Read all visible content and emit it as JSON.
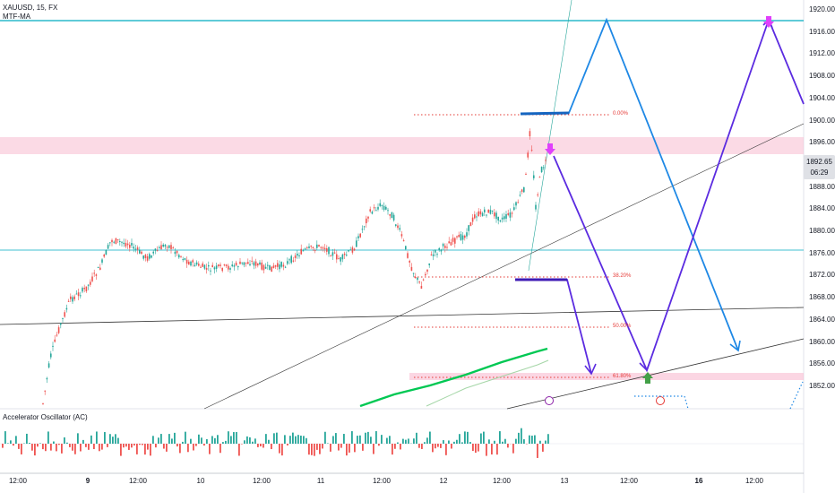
{
  "colors": {
    "background": "#ffffff",
    "up_candle": "#26a69a",
    "down_candle": "#ef5350",
    "fib_dotted": "#e53935",
    "resistance_line": "#00acc1",
    "support_zone": "#f8bbd0",
    "scenario_blue": "#1e88e5",
    "scenario_purple": "#5b2be0",
    "down_arrow_magenta": "#e040fb",
    "up_arrow_green": "#43a047",
    "ma_green": "#00c853",
    "trendline": "#333333"
  },
  "header": {
    "symbol_line": "XAUUSD, 15, FX",
    "indicator_line": "MTF-MA"
  },
  "price_axis": {
    "labels": [
      "1920.00",
      "1916.00",
      "1912.00",
      "1908.00",
      "1904.00",
      "1900.00",
      "1896.00",
      "1888.00",
      "1884.00",
      "1880.00",
      "1876.00",
      "1872.00",
      "1868.00",
      "1864.00",
      "1860.00",
      "1856.00",
      "1852.00"
    ],
    "label_prices": [
      1920,
      1916,
      1912,
      1908,
      1904,
      1900,
      1896,
      1888,
      1884,
      1880,
      1876,
      1872,
      1868,
      1864,
      1860,
      1856,
      1852
    ],
    "current_price": "1892.65",
    "countdown": "06:29"
  },
  "time_axis": {
    "labels": [
      "12:00",
      "9",
      "12:00",
      "10",
      "12:00",
      "11",
      "12:00",
      "12",
      "12:00",
      "13",
      "12:00",
      "16",
      "12:00"
    ],
    "bold": [
      false,
      true,
      false,
      false,
      false,
      false,
      false,
      false,
      false,
      false,
      false,
      true,
      false
    ]
  },
  "fib_levels": [
    {
      "label": "0.00%"
    },
    {
      "label": "38.20%"
    },
    {
      "label": "50.00%"
    },
    {
      "label": "61.80%"
    }
  ],
  "oscillator": {
    "title": "Accelerator Oscillator (AC)"
  }
}
